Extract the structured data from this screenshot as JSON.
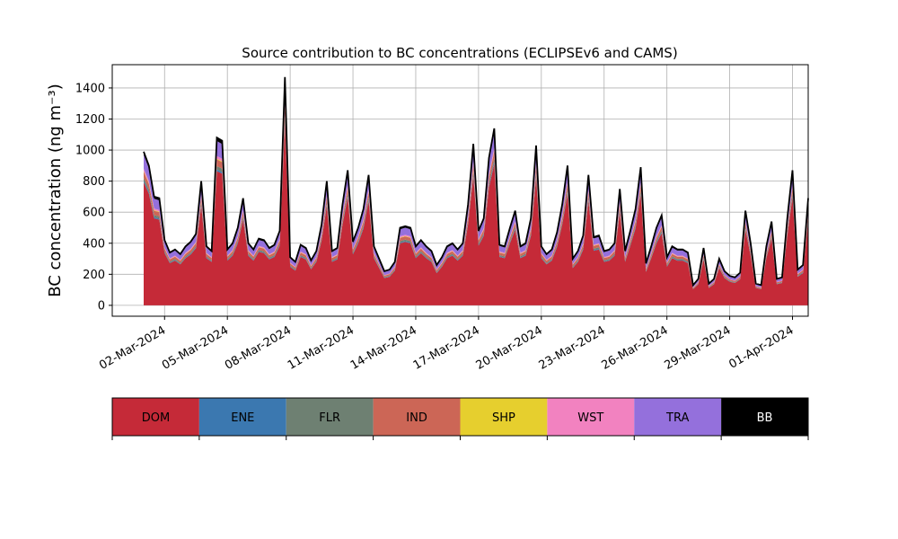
{
  "chart_data": {
    "type": "area",
    "stacked": true,
    "title": "Source contribution to BC concentrations (ECLIPSEv6 and CAMS)",
    "ylabel": "BC concentration (ng m⁻³)",
    "xlabel": "",
    "ylim": [
      -70,
      1550
    ],
    "yticks": [
      0,
      200,
      400,
      600,
      800,
      1000,
      1200,
      1400
    ],
    "xlim": [
      "2024-02-28T12:00",
      "2024-04-01T18:00"
    ],
    "xticks": [
      "2024-03-02",
      "2024-03-05",
      "2024-03-08",
      "2024-03-11",
      "2024-03-14",
      "2024-03-17",
      "2024-03-20",
      "2024-03-23",
      "2024-03-26",
      "2024-03-29",
      "2024-04-01"
    ],
    "xtick_labels": [
      "02-Mar-2024",
      "05-Mar-2024",
      "08-Mar-2024",
      "11-Mar-2024",
      "14-Mar-2024",
      "17-Mar-2024",
      "20-Mar-2024",
      "23-Mar-2024",
      "26-Mar-2024",
      "29-Mar-2024",
      "01-Apr-2024"
    ],
    "grid": true,
    "series_order": [
      "DOM",
      "ENE",
      "FLR",
      "IND",
      "SHP",
      "WST",
      "TRA",
      "BB"
    ],
    "colors": {
      "DOM": "#c52a38",
      "ENE": "#3b78b0",
      "FLR": "#6e8072",
      "IND": "#cc6656",
      "SHP": "#e6cf2e",
      "WST": "#f282c0",
      "TRA": "#9470dc",
      "BB": "#000000"
    },
    "total_series": {
      "name": "Total",
      "points": [
        [
          "2024-03-01T00:00",
          990
        ],
        [
          "2024-03-01T06:00",
          900
        ],
        [
          "2024-03-01T12:00",
          700
        ],
        [
          "2024-03-01T18:00",
          690
        ],
        [
          "2024-03-02T00:00",
          420
        ],
        [
          "2024-03-02T06:00",
          340
        ],
        [
          "2024-03-02T12:00",
          360
        ],
        [
          "2024-03-02T18:00",
          330
        ],
        [
          "2024-03-03T00:00",
          380
        ],
        [
          "2024-03-03T06:00",
          410
        ],
        [
          "2024-03-03T12:00",
          460
        ],
        [
          "2024-03-03T18:00",
          800
        ],
        [
          "2024-03-04T00:00",
          380
        ],
        [
          "2024-03-04T06:00",
          350
        ],
        [
          "2024-03-04T12:00",
          1080
        ],
        [
          "2024-03-04T18:00",
          1060
        ],
        [
          "2024-03-05T00:00",
          360
        ],
        [
          "2024-03-05T06:00",
          400
        ],
        [
          "2024-03-05T12:00",
          500
        ],
        [
          "2024-03-05T18:00",
          690
        ],
        [
          "2024-03-06T00:00",
          400
        ],
        [
          "2024-03-06T06:00",
          360
        ],
        [
          "2024-03-06T12:00",
          430
        ],
        [
          "2024-03-06T18:00",
          420
        ],
        [
          "2024-03-07T00:00",
          370
        ],
        [
          "2024-03-07T06:00",
          390
        ],
        [
          "2024-03-07T12:00",
          480
        ],
        [
          "2024-03-07T18:00",
          1470
        ],
        [
          "2024-03-08T00:00",
          310
        ],
        [
          "2024-03-08T06:00",
          280
        ],
        [
          "2024-03-08T12:00",
          390
        ],
        [
          "2024-03-08T18:00",
          370
        ],
        [
          "2024-03-09T00:00",
          290
        ],
        [
          "2024-03-09T06:00",
          350
        ],
        [
          "2024-03-09T12:00",
          520
        ],
        [
          "2024-03-09T18:00",
          800
        ],
        [
          "2024-03-10T00:00",
          350
        ],
        [
          "2024-03-10T06:00",
          370
        ],
        [
          "2024-03-10T12:00",
          650
        ],
        [
          "2024-03-10T18:00",
          870
        ],
        [
          "2024-03-11T00:00",
          410
        ],
        [
          "2024-03-11T06:00",
          500
        ],
        [
          "2024-03-11T12:00",
          620
        ],
        [
          "2024-03-11T18:00",
          840
        ],
        [
          "2024-03-12T00:00",
          380
        ],
        [
          "2024-03-12T06:00",
          300
        ],
        [
          "2024-03-12T12:00",
          220
        ],
        [
          "2024-03-12T18:00",
          230
        ],
        [
          "2024-03-13T00:00",
          280
        ],
        [
          "2024-03-13T06:00",
          500
        ],
        [
          "2024-03-13T12:00",
          510
        ],
        [
          "2024-03-13T18:00",
          500
        ],
        [
          "2024-03-14T00:00",
          380
        ],
        [
          "2024-03-14T06:00",
          420
        ],
        [
          "2024-03-14T12:00",
          380
        ],
        [
          "2024-03-14T18:00",
          350
        ],
        [
          "2024-03-15T00:00",
          260
        ],
        [
          "2024-03-15T06:00",
          310
        ],
        [
          "2024-03-15T12:00",
          380
        ],
        [
          "2024-03-15T18:00",
          400
        ],
        [
          "2024-03-16T00:00",
          360
        ],
        [
          "2024-03-16T06:00",
          400
        ],
        [
          "2024-03-16T12:00",
          650
        ],
        [
          "2024-03-16T18:00",
          1040
        ],
        [
          "2024-03-17T00:00",
          480
        ],
        [
          "2024-03-17T06:00",
          560
        ],
        [
          "2024-03-17T12:00",
          950
        ],
        [
          "2024-03-17T18:00",
          1140
        ],
        [
          "2024-03-18T00:00",
          390
        ],
        [
          "2024-03-18T06:00",
          380
        ],
        [
          "2024-03-18T12:00",
          500
        ],
        [
          "2024-03-18T18:00",
          610
        ],
        [
          "2024-03-19T00:00",
          380
        ],
        [
          "2024-03-19T06:00",
          400
        ],
        [
          "2024-03-19T12:00",
          560
        ],
        [
          "2024-03-19T18:00",
          1030
        ],
        [
          "2024-03-20T00:00",
          380
        ],
        [
          "2024-03-20T06:00",
          330
        ],
        [
          "2024-03-20T12:00",
          360
        ],
        [
          "2024-03-20T18:00",
          470
        ],
        [
          "2024-03-21T00:00",
          650
        ],
        [
          "2024-03-21T06:00",
          900
        ],
        [
          "2024-03-21T12:00",
          300
        ],
        [
          "2024-03-21T18:00",
          350
        ],
        [
          "2024-03-22T00:00",
          450
        ],
        [
          "2024-03-22T06:00",
          840
        ],
        [
          "2024-03-22T12:00",
          440
        ],
        [
          "2024-03-22T18:00",
          450
        ],
        [
          "2024-03-23T00:00",
          350
        ],
        [
          "2024-03-23T06:00",
          360
        ],
        [
          "2024-03-23T12:00",
          400
        ],
        [
          "2024-03-23T18:00",
          750
        ],
        [
          "2024-03-24T00:00",
          350
        ],
        [
          "2024-03-24T06:00",
          480
        ],
        [
          "2024-03-24T12:00",
          620
        ],
        [
          "2024-03-24T18:00",
          890
        ],
        [
          "2024-03-25T00:00",
          270
        ],
        [
          "2024-03-25T06:00",
          380
        ],
        [
          "2024-03-25T12:00",
          500
        ],
        [
          "2024-03-25T18:00",
          580
        ],
        [
          "2024-03-26T00:00",
          310
        ],
        [
          "2024-03-26T06:00",
          380
        ],
        [
          "2024-03-26T12:00",
          360
        ],
        [
          "2024-03-26T18:00",
          360
        ],
        [
          "2024-03-27T00:00",
          340
        ],
        [
          "2024-03-27T06:00",
          130
        ],
        [
          "2024-03-27T12:00",
          170
        ],
        [
          "2024-03-27T18:00",
          370
        ],
        [
          "2024-03-28T00:00",
          140
        ],
        [
          "2024-03-28T06:00",
          170
        ],
        [
          "2024-03-28T12:00",
          300
        ],
        [
          "2024-03-28T18:00",
          220
        ],
        [
          "2024-03-29T00:00",
          190
        ],
        [
          "2024-03-29T06:00",
          180
        ],
        [
          "2024-03-29T12:00",
          210
        ],
        [
          "2024-03-29T18:00",
          610
        ],
        [
          "2024-03-30T00:00",
          400
        ],
        [
          "2024-03-30T06:00",
          140
        ],
        [
          "2024-03-30T12:00",
          130
        ],
        [
          "2024-03-30T18:00",
          380
        ],
        [
          "2024-03-31T00:00",
          540
        ],
        [
          "2024-03-31T06:00",
          170
        ],
        [
          "2024-03-31T12:00",
          180
        ],
        [
          "2024-03-31T18:00",
          560
        ],
        [
          "2024-04-01T00:00",
          870
        ],
        [
          "2024-04-01T06:00",
          230
        ],
        [
          "2024-04-01T12:00",
          260
        ],
        [
          "2024-04-01T18:00",
          690
        ]
      ]
    },
    "stack_shares": {
      "DOM": 0.8,
      "ENE": 0.01,
      "FLR": 0.02,
      "IND": 0.04,
      "SHP": 0.005,
      "WST": 0.015,
      "TRA": 0.09,
      "BB": 0.02
    },
    "legend_placement": "bottom"
  }
}
